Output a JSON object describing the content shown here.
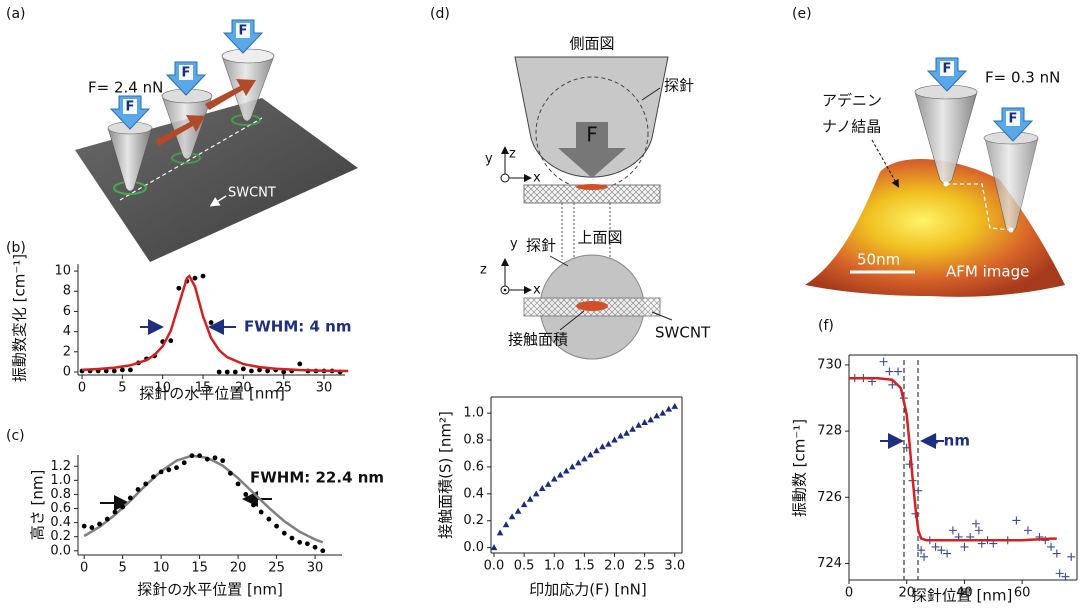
{
  "panel_labels": [
    "(a)",
    "(b)",
    "(c)",
    "(d)",
    "(e)",
    "(f)"
  ],
  "diagram_a": {
    "force": "F= 2.4 nN",
    "force_icons": [
      "F",
      "F",
      "F"
    ],
    "tube_label": "SWCNT"
  },
  "diagram_d": {
    "side_view_title": "側面図",
    "side_tip_label": "探針",
    "force_icon": "F",
    "side_axes": [
      "z",
      "y",
      "x"
    ],
    "top_view_title": "上面図",
    "top_tip_label": "探針",
    "top_axes": [
      "z",
      "y",
      "x"
    ],
    "contact_label": "接触面積",
    "tube_label": "SWCNT"
  },
  "diagram_e": {
    "force_icons": [
      "F",
      "F"
    ],
    "force": "F= 0.3 nN",
    "crystal_label": [
      "アデニン",
      "ナノ結晶"
    ],
    "scale_label": "50nm",
    "image_label": "AFM image"
  },
  "chart_data": [
    {
      "type": "scatter",
      "frame": "axes",
      "xlabel": "探針の水平位置 [nm]",
      "ylabel": "振動数変化 [cm⁻¹]",
      "annotation": "FWHM: 4 nm",
      "xlim": [
        -0.5,
        32.6
      ],
      "ylim": [
        -0.3,
        10.7
      ],
      "xticks": [
        0,
        5,
        10,
        15,
        20,
        25,
        30
      ],
      "yticks": [
        0,
        2,
        4,
        6,
        8,
        10
      ],
      "series": [
        {
          "style": "dots",
          "color": "#000000",
          "x": [
            0,
            1,
            2,
            3,
            4,
            5,
            6,
            7,
            8,
            9,
            10,
            11,
            12,
            13,
            14,
            15,
            16,
            17,
            18,
            19,
            20,
            21,
            22,
            23,
            24,
            25,
            26,
            27,
            28,
            29,
            30,
            31,
            32
          ],
          "values": [
            0.1,
            0.1,
            0.1,
            0.1,
            0.1,
            0.2,
            0.2,
            0.9,
            1.3,
            1.6,
            3.0,
            3.1,
            8.3,
            9.0,
            9.3,
            9.5,
            4.9,
            0,
            0,
            0,
            0.3,
            0.1,
            0.2,
            0.1,
            0.2,
            0,
            0.1,
            0.8,
            0.1,
            0.1,
            0.1,
            0.1,
            0
          ]
        },
        {
          "style": "line",
          "color": "#d42020",
          "x": [
            0,
            2,
            4,
            6,
            8,
            9,
            10,
            11,
            12,
            13,
            13.3,
            14,
            15,
            16,
            17,
            18,
            20,
            22,
            24,
            27,
            30,
            33
          ],
          "values": [
            0.21,
            0.29,
            0.42,
            0.66,
            1.18,
            1.69,
            2.55,
            4.09,
            6.69,
            9.29,
            9.5,
            8.47,
            5.52,
            3.37,
            2.15,
            1.46,
            0.78,
            0.48,
            0.32,
            0.2,
            0.13,
            0.1
          ]
        }
      ]
    },
    {
      "type": "scatter",
      "frame": "axes",
      "xlabel": "探針の水平位置 [nm]",
      "ylabel": "高さ [nm]",
      "annotation": "FWHM: 22.4 nm",
      "xlim": [
        -0.8,
        33.5
      ],
      "ylim": [
        -0.06,
        1.36
      ],
      "xticks": [
        0,
        5,
        10,
        15,
        20,
        25,
        30
      ],
      "yticks": [
        {
          "value": 0,
          "label": "0.0"
        },
        0.2,
        0.4,
        0.6,
        0.8,
        {
          "value": 1,
          "label": "1.0"
        },
        1.2
      ],
      "series": [
        {
          "style": "line",
          "color": "#808080",
          "x": [
            0,
            2,
            4,
            6,
            8,
            10,
            12,
            14,
            16,
            18,
            20,
            22,
            24,
            26,
            28,
            30,
            31
          ],
          "values": [
            0.21,
            0.34,
            0.51,
            0.71,
            0.93,
            1.13,
            1.28,
            1.35,
            1.32,
            1.21,
            1.03,
            0.82,
            0.61,
            0.42,
            0.27,
            0.16,
            0.12
          ]
        },
        {
          "style": "dots",
          "color": "#000000",
          "x": [
            0,
            1,
            2,
            3,
            4,
            5,
            6,
            7,
            8,
            9,
            10,
            11,
            12,
            13,
            14,
            15,
            16,
            17,
            18,
            19,
            20,
            21,
            22,
            23,
            24,
            25,
            26,
            27,
            28,
            29,
            30,
            31
          ],
          "values": [
            0.35,
            0.33,
            0.38,
            0.45,
            0.55,
            0.62,
            0.75,
            0.87,
            0.95,
            1.05,
            1.12,
            1.15,
            1.18,
            1.25,
            1.35,
            1.35,
            1.3,
            1.32,
            1.28,
            1.1,
            0.95,
            0.8,
            0.65,
            0.55,
            0.45,
            0.35,
            0.25,
            0.18,
            0.12,
            0.1,
            0.05,
            0
          ]
        }
      ]
    },
    {
      "type": "scatter",
      "frame": "box",
      "xlabel": "印加応力(F) [nN]",
      "ylabel": "接触面積(S) [nm²]",
      "xlim": [
        -0.05,
        3.12
      ],
      "ylim": [
        -0.04,
        1.12
      ],
      "xticks": [
        {
          "value": 0,
          "label": "0.0"
        },
        0.5,
        {
          "value": 1,
          "label": "1.0"
        },
        1.5,
        {
          "value": 2,
          "label": "2.0"
        },
        2.5,
        {
          "value": 3,
          "label": "3.0"
        }
      ],
      "yticks": [
        {
          "value": 0,
          "label": "0.0"
        },
        0.2,
        0.4,
        0.6,
        0.8,
        {
          "value": 1,
          "label": "1.0"
        }
      ],
      "series": [
        {
          "style": "triangle",
          "color": "#1c2a80",
          "x": [
            0,
            0.1,
            0.2,
            0.3,
            0.4,
            0.5,
            0.6,
            0.7,
            0.8,
            0.9,
            1.0,
            1.1,
            1.2,
            1.3,
            1.4,
            1.5,
            1.6,
            1.7,
            1.8,
            1.9,
            2.0,
            2.1,
            2.2,
            2.3,
            2.4,
            2.5,
            2.6,
            2.7,
            2.8,
            2.9,
            3.0
          ],
          "values": [
            0,
            0.11,
            0.17,
            0.23,
            0.27,
            0.32,
            0.36,
            0.4,
            0.44,
            0.47,
            0.51,
            0.54,
            0.57,
            0.6,
            0.63,
            0.66,
            0.69,
            0.72,
            0.75,
            0.77,
            0.8,
            0.83,
            0.85,
            0.88,
            0.91,
            0.93,
            0.95,
            0.98,
            1.0,
            1.03,
            1.05
          ]
        }
      ]
    },
    {
      "type": "scatter",
      "frame": "box",
      "xlabel": "探針位置 [nm]",
      "ylabel": "振動数 [cm⁻¹]",
      "annotation": "4 nm",
      "xlim": [
        0,
        79
      ],
      "ylim": [
        723.5,
        730.3
      ],
      "xticks": [
        0,
        20,
        40,
        60
      ],
      "yticks": [
        724,
        726,
        728,
        730
      ],
      "series": [
        {
          "style": "plus",
          "color": "#3a4a9a",
          "x": [
            2,
            5,
            8,
            12,
            14,
            15,
            17,
            19,
            20,
            21,
            22,
            23,
            24,
            25,
            26,
            28,
            30,
            32,
            34,
            36,
            38,
            40,
            42,
            44,
            45,
            46,
            48,
            50,
            55,
            58,
            62,
            66,
            68,
            70,
            72,
            73,
            75,
            77
          ],
          "values": [
            729.6,
            729.6,
            729.5,
            730.1,
            729.8,
            729.4,
            729.8,
            729.0,
            727.5,
            727.0,
            726.5,
            725.5,
            726.2,
            724.4,
            724.2,
            724.7,
            724.5,
            724.4,
            724.3,
            725.0,
            724.8,
            724.5,
            724.8,
            725.2,
            725.0,
            724.6,
            724.7,
            724.6,
            724.7,
            725.3,
            725.0,
            724.8,
            724.7,
            724.5,
            724.3,
            723.7,
            723.6,
            724.2
          ]
        },
        {
          "style": "line",
          "color": "#d42020",
          "x": [
            0,
            5,
            10,
            15,
            18,
            20,
            21,
            22,
            23,
            24,
            25,
            27,
            30,
            40,
            50,
            60,
            70,
            72
          ],
          "values": [
            729.6,
            729.6,
            729.6,
            729.55,
            729.3,
            728.5,
            727.6,
            726.6,
            725.7,
            725.0,
            724.75,
            724.7,
            724.7,
            724.7,
            724.7,
            724.7,
            724.75,
            724.75
          ]
        }
      ]
    }
  ]
}
